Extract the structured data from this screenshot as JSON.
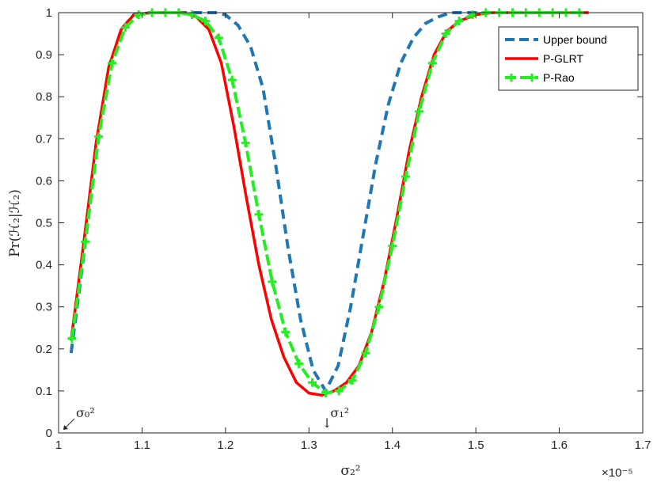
{
  "chart_data": {
    "type": "line",
    "title": "",
    "xlabel": "σ₂²",
    "ylabel": "Pr(ℋ₂|ℋ₂)",
    "x_exponent": "×10⁻⁵",
    "xlim": [
      1.0,
      1.7
    ],
    "ylim": [
      0,
      1
    ],
    "xticks": [
      1,
      1.1,
      1.2,
      1.3,
      1.4,
      1.5,
      1.6,
      1.7
    ],
    "yticks": [
      0,
      0.1,
      0.2,
      0.3,
      0.4,
      0.5,
      0.6,
      0.7,
      0.8,
      0.9,
      1
    ],
    "xtick_labels": [
      "1",
      "1.1",
      "1.2",
      "1.3",
      "1.4",
      "1.5",
      "1.6",
      "1.7"
    ],
    "ytick_labels": [
      "0",
      "0.1",
      "0.2",
      "0.3",
      "0.4",
      "0.5",
      "0.6",
      "0.7",
      "0.8",
      "0.9",
      "1"
    ],
    "grid": false,
    "legend_position": "top-right",
    "series": [
      {
        "name": "Upper bound",
        "color": "#1f77b4",
        "style": "dashed",
        "x": [
          1.015,
          1.03,
          1.045,
          1.06,
          1.075,
          1.09,
          1.11,
          1.13,
          1.15,
          1.17,
          1.19,
          1.2,
          1.215,
          1.23,
          1.245,
          1.26,
          1.275,
          1.29,
          1.305,
          1.32,
          1.335,
          1.35,
          1.365,
          1.38,
          1.395,
          1.41,
          1.425,
          1.44,
          1.455,
          1.47,
          1.49,
          1.51,
          1.53,
          1.55,
          1.58,
          1.61,
          1.635
        ],
        "y": [
          0.19,
          0.42,
          0.66,
          0.86,
          0.96,
          0.995,
          1.0,
          1.0,
          1.0,
          1.0,
          1.0,
          0.995,
          0.97,
          0.92,
          0.82,
          0.64,
          0.44,
          0.27,
          0.15,
          0.1,
          0.16,
          0.3,
          0.47,
          0.64,
          0.78,
          0.88,
          0.94,
          0.975,
          0.99,
          1.0,
          1.0,
          1.0,
          1.0,
          1.0,
          1.0,
          1.0,
          1.0
        ]
      },
      {
        "name": "P-GLRT",
        "color": "#ff0000",
        "style": "solid",
        "x": [
          1.015,
          1.03,
          1.045,
          1.06,
          1.075,
          1.09,
          1.11,
          1.13,
          1.15,
          1.165,
          1.18,
          1.195,
          1.21,
          1.225,
          1.24,
          1.255,
          1.27,
          1.285,
          1.3,
          1.315,
          1.33,
          1.345,
          1.36,
          1.375,
          1.39,
          1.405,
          1.42,
          1.435,
          1.45,
          1.465,
          1.48,
          1.5,
          1.52,
          1.55,
          1.58,
          1.61,
          1.635
        ],
        "y": [
          0.22,
          0.45,
          0.69,
          0.87,
          0.96,
          0.995,
          1.0,
          1.0,
          1.0,
          0.99,
          0.96,
          0.88,
          0.73,
          0.56,
          0.4,
          0.27,
          0.18,
          0.12,
          0.095,
          0.09,
          0.1,
          0.12,
          0.16,
          0.24,
          0.36,
          0.51,
          0.67,
          0.8,
          0.9,
          0.955,
          0.98,
          0.995,
          1.0,
          1.0,
          1.0,
          1.0,
          1.0
        ]
      },
      {
        "name": "P-Rao",
        "color": "#22ee22",
        "style": "dash-dot",
        "marker": "plus",
        "x": [
          1.016,
          1.032,
          1.048,
          1.064,
          1.08,
          1.096,
          1.112,
          1.128,
          1.144,
          1.16,
          1.176,
          1.192,
          1.208,
          1.224,
          1.24,
          1.256,
          1.272,
          1.288,
          1.304,
          1.32,
          1.336,
          1.352,
          1.368,
          1.384,
          1.4,
          1.416,
          1.432,
          1.448,
          1.464,
          1.48,
          1.496,
          1.512,
          1.528,
          1.544,
          1.56,
          1.576,
          1.592,
          1.608,
          1.624
        ],
        "y": [
          0.225,
          0.455,
          0.705,
          0.88,
          0.965,
          0.995,
          1.0,
          1.0,
          1.0,
          0.995,
          0.98,
          0.94,
          0.84,
          0.69,
          0.52,
          0.36,
          0.24,
          0.165,
          0.12,
          0.095,
          0.1,
          0.125,
          0.19,
          0.3,
          0.445,
          0.61,
          0.765,
          0.88,
          0.95,
          0.98,
          0.995,
          1.0,
          1.0,
          1.0,
          1.0,
          1.0,
          1.0,
          1.0,
          1.0
        ]
      }
    ],
    "annotations": [
      {
        "text": "σ₀²",
        "x": 1.0,
        "y": 0.0,
        "arrow": "↙"
      },
      {
        "text": "σ₁²",
        "x": 1.32,
        "y": 0.0,
        "arrow": "↓"
      }
    ]
  }
}
